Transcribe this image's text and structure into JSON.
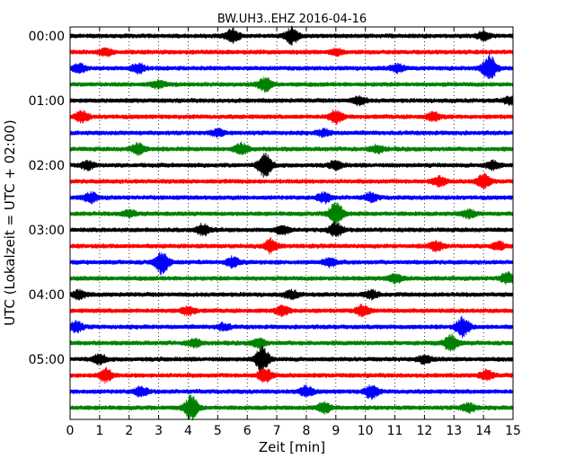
{
  "chart_data": {
    "type": "line",
    "title": "BW.UH3..EHZ 2016-04-16",
    "xlabel": "Zeit  [min]",
    "ylabel": "UTC (Lokalzeit = UTC + 02:00)",
    "xlim": [
      0,
      15
    ],
    "x_ticks": [
      0,
      1,
      2,
      3,
      4,
      5,
      6,
      7,
      8,
      9,
      10,
      11,
      12,
      13,
      14,
      15
    ],
    "y_ticks": [
      "00:00",
      "01:00",
      "02:00",
      "03:00",
      "04:00",
      "05:00"
    ],
    "grid": "vertical-dotted",
    "trace_interval_minutes": 15,
    "trace_count": 24,
    "trace_colors": [
      "#000000",
      "#ff0000",
      "#0000ff",
      "#008000"
    ],
    "traces": [
      {
        "start": "00:00",
        "events": [
          [
            5.5,
            0.5
          ],
          [
            7.5,
            0.6
          ],
          [
            14.0,
            0.3
          ]
        ]
      },
      {
        "start": "00:15",
        "events": [
          [
            1.2,
            0.25
          ],
          [
            9.0,
            0.2
          ]
        ]
      },
      {
        "start": "00:30",
        "events": [
          [
            0.3,
            0.3
          ],
          [
            2.3,
            0.35
          ],
          [
            14.2,
            1.0
          ],
          [
            11.1,
            0.3
          ]
        ]
      },
      {
        "start": "00:45",
        "events": [
          [
            6.6,
            0.5
          ],
          [
            3.0,
            0.25
          ]
        ]
      },
      {
        "start": "01:00",
        "events": [
          [
            9.8,
            0.3
          ],
          [
            14.9,
            0.25
          ]
        ]
      },
      {
        "start": "01:15",
        "events": [
          [
            0.4,
            0.4
          ],
          [
            9.0,
            0.5
          ],
          [
            12.3,
            0.3
          ]
        ]
      },
      {
        "start": "01:30",
        "events": [
          [
            5.0,
            0.25
          ],
          [
            8.6,
            0.25
          ]
        ]
      },
      {
        "start": "01:45",
        "events": [
          [
            2.3,
            0.4
          ],
          [
            5.8,
            0.4
          ],
          [
            10.4,
            0.25
          ]
        ]
      },
      {
        "start": "02:00",
        "events": [
          [
            6.6,
            0.9
          ],
          [
            0.6,
            0.3
          ],
          [
            9.0,
            0.3
          ],
          [
            14.3,
            0.3
          ]
        ]
      },
      {
        "start": "02:15",
        "events": [
          [
            12.5,
            0.35
          ],
          [
            14.0,
            0.5
          ]
        ]
      },
      {
        "start": "02:30",
        "events": [
          [
            0.7,
            0.35
          ],
          [
            8.6,
            0.35
          ],
          [
            10.2,
            0.3
          ]
        ]
      },
      {
        "start": "02:45",
        "events": [
          [
            9.0,
            0.9
          ],
          [
            13.5,
            0.3
          ],
          [
            2.0,
            0.25
          ]
        ]
      },
      {
        "start": "03:00",
        "events": [
          [
            4.5,
            0.4
          ],
          [
            9.0,
            0.5
          ],
          [
            7.2,
            0.3
          ]
        ]
      },
      {
        "start": "03:15",
        "events": [
          [
            6.8,
            0.5
          ],
          [
            12.4,
            0.35
          ],
          [
            14.5,
            0.3
          ]
        ]
      },
      {
        "start": "03:30",
        "events": [
          [
            3.1,
            0.9
          ],
          [
            5.5,
            0.35
          ],
          [
            8.8,
            0.3
          ]
        ]
      },
      {
        "start": "03:45",
        "events": [
          [
            14.8,
            0.4
          ],
          [
            11.0,
            0.3
          ]
        ]
      },
      {
        "start": "04:00",
        "events": [
          [
            0.3,
            0.3
          ],
          [
            7.5,
            0.3
          ],
          [
            10.2,
            0.3
          ]
        ]
      },
      {
        "start": "04:15",
        "events": [
          [
            9.9,
            0.4
          ],
          [
            4.0,
            0.3
          ],
          [
            7.2,
            0.35
          ]
        ]
      },
      {
        "start": "04:30",
        "events": [
          [
            0.2,
            0.4
          ],
          [
            13.3,
            0.7
          ],
          [
            5.2,
            0.25
          ]
        ]
      },
      {
        "start": "04:45",
        "events": [
          [
            12.9,
            0.6
          ],
          [
            6.4,
            0.35
          ],
          [
            4.2,
            0.3
          ]
        ]
      },
      {
        "start": "05:00",
        "events": [
          [
            6.5,
            0.9
          ],
          [
            1.0,
            0.35
          ],
          [
            12.0,
            0.3
          ]
        ]
      },
      {
        "start": "05:15",
        "events": [
          [
            1.2,
            0.5
          ],
          [
            6.6,
            0.5
          ],
          [
            14.1,
            0.35
          ]
        ]
      },
      {
        "start": "05:30",
        "events": [
          [
            10.2,
            0.5
          ],
          [
            8.0,
            0.4
          ],
          [
            2.4,
            0.35
          ]
        ]
      },
      {
        "start": "05:45",
        "events": [
          [
            4.1,
            0.9
          ],
          [
            8.6,
            0.4
          ],
          [
            13.5,
            0.35
          ]
        ]
      }
    ]
  }
}
